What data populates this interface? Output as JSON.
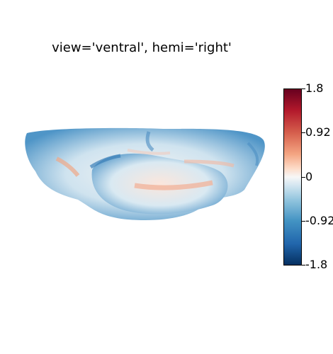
{
  "title": "view='ventral', hemi='right'",
  "colorbar": {
    "labels": [
      "1.8",
      "0.92",
      "0",
      "-0.92",
      "-1.8"
    ],
    "colormap": [
      "#67001f",
      "#b2182b",
      "#d6604d",
      "#f4a582",
      "#fddbc7",
      "#f7f7f7",
      "#d1e5f0",
      "#92c5de",
      "#4393c3",
      "#2166ac",
      "#053061"
    ]
  }
}
